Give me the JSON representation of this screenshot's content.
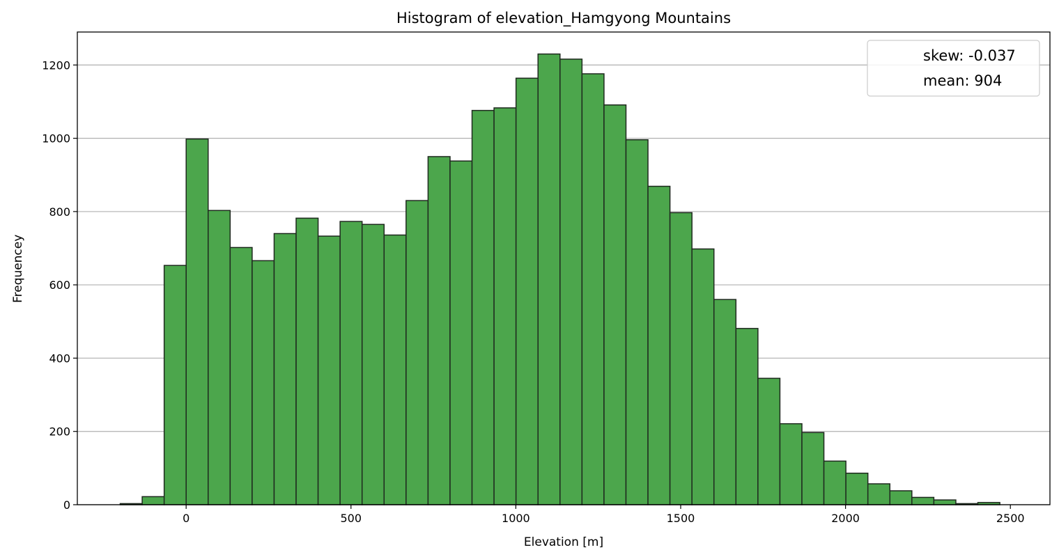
{
  "chart_data": {
    "type": "bar",
    "title": "Histogram of elevation_Hamgyong Mountains",
    "xlabel": "Elevation [m]",
    "ylabel": "Frequencey",
    "xlim": [
      -330,
      2620
    ],
    "ylim": [
      0,
      1290
    ],
    "x_ticks": [
      0,
      500,
      1000,
      1500,
      2000,
      2500
    ],
    "y_ticks": [
      0,
      200,
      400,
      600,
      800,
      1000,
      1200
    ],
    "grid": "y",
    "bar_color": "#4ca64c",
    "edge_color": "#1f2a1f",
    "grid_color": "#b0b0b0",
    "bin_width": 66.7,
    "bin_start": -200,
    "values": [
      3,
      22,
      653,
      998,
      803,
      702,
      666,
      740,
      782,
      733,
      773,
      765,
      736,
      830,
      950,
      938,
      1076,
      1083,
      1164,
      1230,
      1216,
      1176,
      1091,
      996,
      869,
      797,
      698,
      560,
      481,
      345,
      221,
      197,
      119,
      86,
      57,
      38,
      20,
      13,
      3,
      6
    ],
    "legend": {
      "position": "top-right",
      "entries": [
        "skew: -0.037",
        "mean: 904"
      ]
    }
  }
}
